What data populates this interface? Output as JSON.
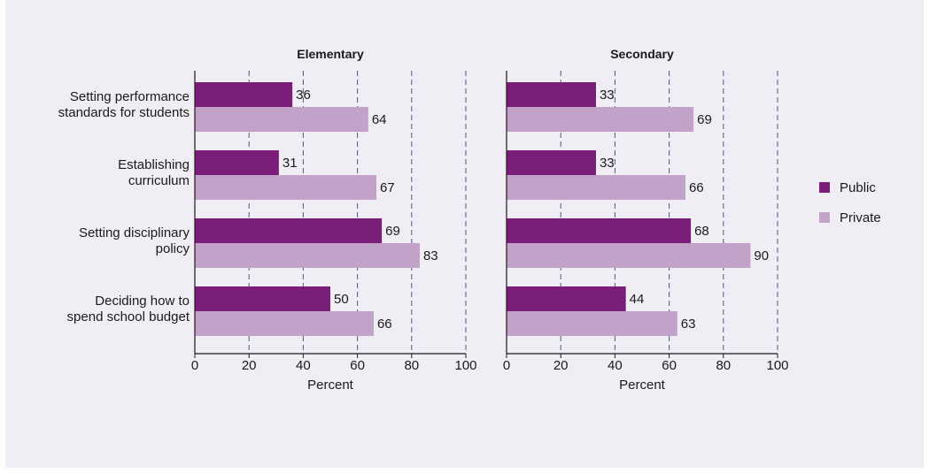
{
  "chart_data": {
    "type": "bar",
    "orientation": "horizontal",
    "categories": [
      [
        "Setting performance",
        "standards for students"
      ],
      [
        "Establishing",
        "curriculum"
      ],
      [
        "Setting disciplinary",
        "policy"
      ],
      [
        "Deciding how to",
        "spend school budget"
      ]
    ],
    "xlabel": "Percent",
    "xlim": [
      0,
      100
    ],
    "xticks": [
      0,
      20,
      40,
      60,
      80,
      100
    ],
    "grid": "vertical dashed",
    "legend": {
      "placement": "right",
      "entries": [
        {
          "name": "Public",
          "color": "#7b1e7a"
        },
        {
          "name": "Private",
          "color": "#c2a2c8"
        }
      ]
    },
    "panels": [
      {
        "title": "Elementary",
        "series": [
          {
            "name": "Public",
            "values": [
              36,
              31,
              69,
              50
            ]
          },
          {
            "name": "Private",
            "values": [
              64,
              67,
              83,
              66
            ]
          }
        ]
      },
      {
        "title": "Secondary",
        "series": [
          {
            "name": "Public",
            "values": [
              33,
              33,
              68,
              44
            ]
          },
          {
            "name": "Private",
            "values": [
              69,
              66,
              90,
              63
            ]
          }
        ]
      }
    ]
  },
  "colors": {
    "public": "#7b1e7a",
    "private": "#c2a2c8",
    "background": "#f1edf4",
    "grid": "#4a5a8a"
  }
}
